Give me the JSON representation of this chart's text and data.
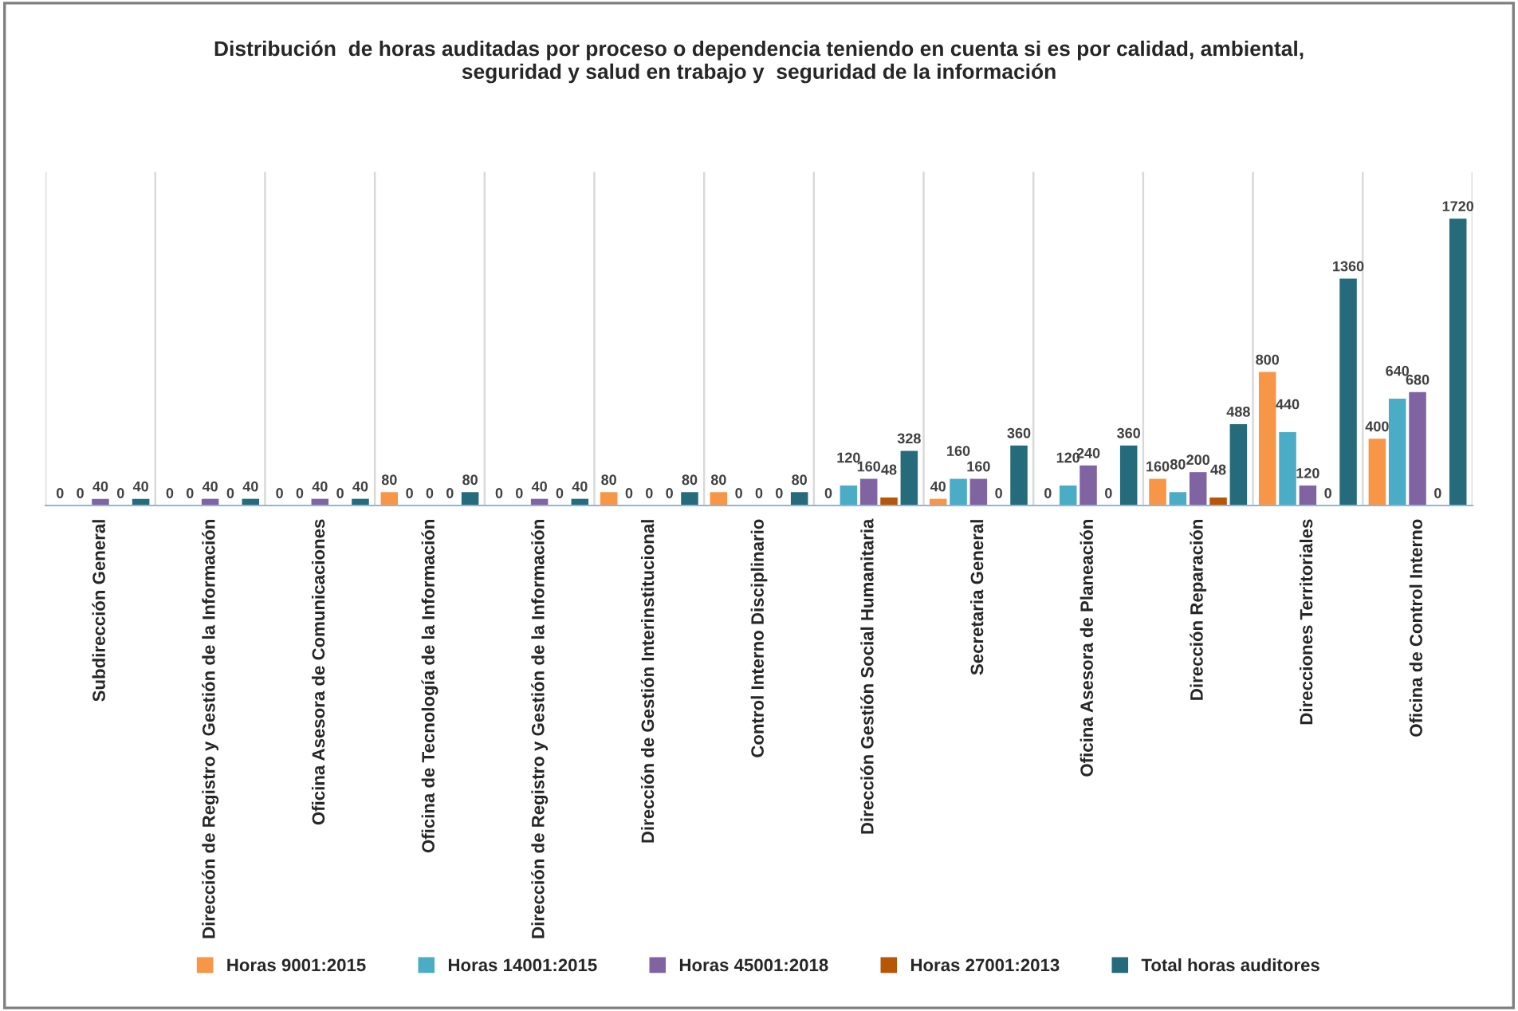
{
  "chart_data": {
    "type": "bar",
    "title": "Distribución  de horas auditadas por proceso o dependencia teniendo en cuenta si es por calidad, ambiental, seguridad y salud en trabajo y  seguridad de la información",
    "categories": [
      "Subdirección General",
      "Dirección de Registro y Gestión de la Información",
      "Oficina Asesora de Comunicaciones",
      "Oficina de Tecnología de la Información",
      "Dirección de Registro y Gestión de la Información",
      "Dirección de Gestión Interinstitucional",
      "Control Interno Disciplinario",
      "Dirección Gestión Social Humanitaria",
      "Secretaria General",
      "Oficina Asesora de Planeación",
      "Dirección Reparación",
      "Direcciones Territoriales",
      "Oficina de Control Interno"
    ],
    "series": [
      {
        "name": "Horas 9001:2015",
        "color": "#f79646",
        "values": [
          0,
          0,
          0,
          80,
          0,
          80,
          80,
          0,
          40,
          0,
          160,
          800,
          400
        ]
      },
      {
        "name": "Horas 14001:2015",
        "color": "#4bacc6",
        "values": [
          0,
          0,
          0,
          0,
          0,
          0,
          0,
          120,
          160,
          120,
          80,
          440,
          640
        ]
      },
      {
        "name": "Horas 45001:2018",
        "color": "#8064a2",
        "values": [
          40,
          40,
          40,
          0,
          40,
          0,
          0,
          160,
          160,
          240,
          200,
          120,
          680
        ]
      },
      {
        "name": "Horas 27001:2013",
        "color": "#b65708",
        "values": [
          0,
          0,
          0,
          0,
          0,
          0,
          0,
          48,
          0,
          0,
          48,
          0,
          0
        ]
      },
      {
        "name": "Total horas auditores",
        "color": "#256b7b",
        "values": [
          40,
          40,
          40,
          80,
          40,
          80,
          80,
          328,
          360,
          360,
          488,
          1360,
          1720
        ]
      }
    ],
    "ylim": [
      0,
      2000
    ],
    "tick_labels": "x",
    "data_labels": true,
    "grid": "x",
    "legend": "bottom"
  }
}
